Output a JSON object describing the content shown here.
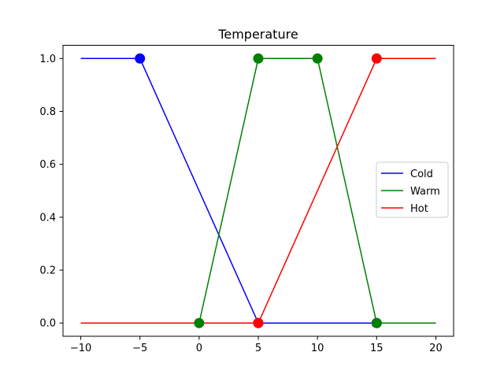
{
  "chart_data": {
    "type": "line",
    "title": "Temperature",
    "xlabel": "",
    "ylabel": "",
    "xlim": [
      -11.5,
      21.5
    ],
    "ylim": [
      -0.05,
      1.05
    ],
    "xticks": [
      -10,
      -5,
      0,
      5,
      10,
      15,
      20
    ],
    "yticks": [
      0.0,
      0.2,
      0.4,
      0.6,
      0.8,
      1.0
    ],
    "xtick_labels": [
      "−10",
      "−5",
      "0",
      "5",
      "10",
      "15",
      "20"
    ],
    "ytick_labels": [
      "0.0",
      "0.2",
      "0.4",
      "0.6",
      "0.8",
      "1.0"
    ],
    "grid": false,
    "legend_position": "center-right",
    "series": [
      {
        "name": "Cold",
        "color": "#0000ff",
        "x": [
          -10,
          -5,
          5,
          15,
          20
        ],
        "y": [
          1,
          1,
          0,
          0,
          0
        ],
        "markers": [
          [
            -5,
            1
          ],
          [
            5,
            0
          ],
          [
            15,
            0
          ]
        ]
      },
      {
        "name": "Warm",
        "color": "#008000",
        "x": [
          -10,
          0,
          5,
          10,
          15,
          20
        ],
        "y": [
          0,
          0,
          1,
          1,
          0,
          0
        ],
        "markers": [
          [
            0,
            0
          ],
          [
            5,
            1
          ],
          [
            10,
            1
          ],
          [
            15,
            0
          ]
        ]
      },
      {
        "name": "Hot",
        "color": "#ff0000",
        "x": [
          -10,
          5,
          15,
          20
        ],
        "y": [
          0,
          0,
          1,
          1
        ],
        "markers": [
          [
            5,
            0
          ],
          [
            15,
            1
          ]
        ]
      }
    ]
  }
}
